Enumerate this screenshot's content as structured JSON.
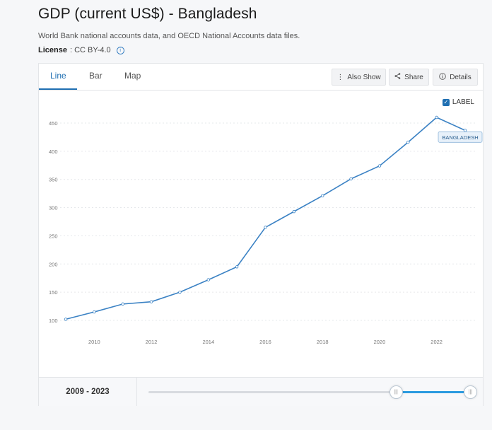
{
  "page": {
    "title": "GDP (current US$) - Bangladesh",
    "description": "World Bank national accounts data, and OECD National Accounts data files.",
    "license_label": "License",
    "license_value": " : CC BY-4.0"
  },
  "tabs": [
    {
      "label": "Line",
      "active": true
    },
    {
      "label": "Bar",
      "active": false
    },
    {
      "label": "Map",
      "active": false
    }
  ],
  "toolbar": {
    "also_show": "Also Show",
    "share": "Share",
    "details": "Details"
  },
  "label_toggle": {
    "label": "LABEL",
    "checked": true
  },
  "footer": {
    "range": "2009 - 2023",
    "range_fraction": [
      0.76,
      1.0
    ]
  },
  "colors": {
    "line": "#3b82c4",
    "accent": "#1f6fb2",
    "slider": "#2b9be0"
  },
  "chart_data": {
    "type": "line",
    "series": [
      {
        "name": "BANGLADESH",
        "x": [
          2009,
          2010,
          2011,
          2012,
          2013,
          2014,
          2015,
          2016,
          2017,
          2018,
          2019,
          2020,
          2021,
          2022,
          2023
        ],
        "values": [
          102,
          115,
          129,
          133,
          150,
          172,
          195,
          265,
          293,
          321,
          351,
          374,
          416,
          460,
          437
        ]
      }
    ],
    "xticks": [
      2010,
      2012,
      2014,
      2016,
      2018,
      2020,
      2022
    ],
    "yticks": [
      100,
      150,
      200,
      250,
      300,
      350,
      400,
      450
    ],
    "xlim": [
      2009,
      2023
    ],
    "ylim": [
      100,
      460
    ],
    "grid": true
  }
}
